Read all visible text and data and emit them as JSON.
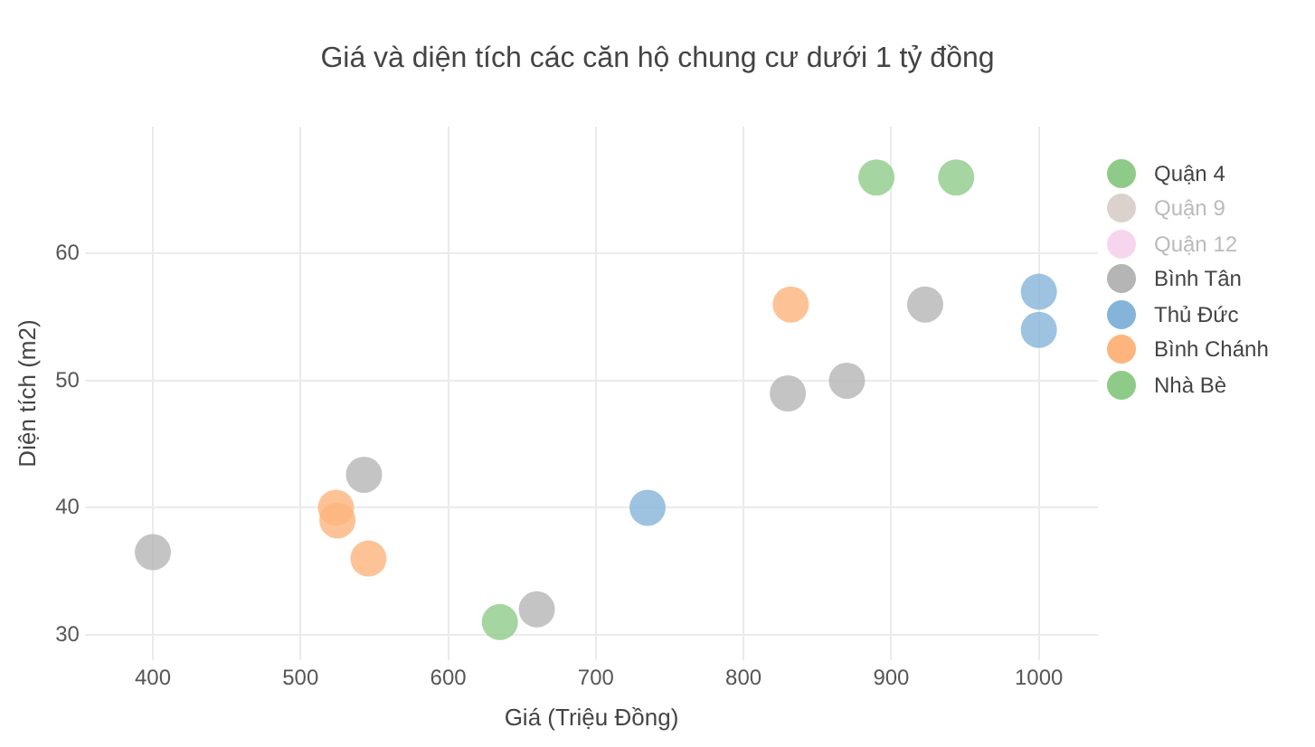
{
  "chart_data": {
    "type": "scatter",
    "title": "Giá và diện tích các căn hộ chung cư dưới 1 tỷ đồng",
    "xlabel": "Giá (Triệu Đồng)",
    "ylabel": "Diện tích (m2)",
    "xlim": [
      354,
      1040
    ],
    "xticks": [
      400,
      500,
      600,
      700,
      800,
      900,
      1000
    ],
    "ylim": [
      28,
      70
    ],
    "yticks": [
      30,
      40,
      50,
      60
    ],
    "grid": true,
    "legend": "top right",
    "marker": "circle",
    "series": [
      {
        "name": "Quận 4",
        "color": "#8ecb88",
        "x": [
          890,
          944
        ],
        "values": [
          66,
          66
        ]
      },
      {
        "name": "Quận 9",
        "color": "#dcd2cd"
      },
      {
        "name": "Quận 12",
        "color": "#f6d6ee"
      },
      {
        "name": "Bình Tân",
        "color": "#b5b5b5",
        "x": [
          923,
          830,
          870,
          543,
          400,
          660
        ],
        "values": [
          56,
          49,
          50,
          42.6,
          36.5,
          32
        ]
      },
      {
        "name": "Thủ Đức",
        "color": "#84b4d9",
        "x": [
          1000,
          1000,
          735
        ],
        "values": [
          57,
          54,
          40
        ]
      },
      {
        "name": "Bình Chánh",
        "color": "#fdb47d",
        "x": [
          832,
          524,
          525,
          546
        ],
        "values": [
          56,
          40,
          39,
          36
        ]
      },
      {
        "name": "Nhà Bè",
        "color": "#8ecb88",
        "x": [
          635
        ],
        "values": [
          31
        ]
      }
    ]
  }
}
